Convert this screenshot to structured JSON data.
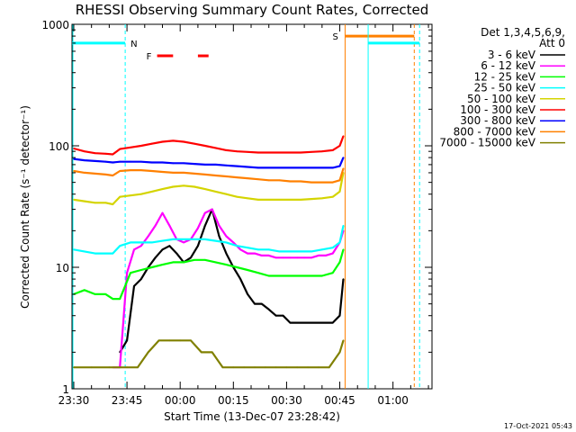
{
  "chart_data": {
    "type": "line",
    "title": "RHESSI Observing Summary Count Rates, Corrected",
    "xlabel": "Start Time (13-Dec-07 23:28:42)",
    "ylabel": "Corrected Count Rate (s⁻¹ detector⁻¹)",
    "ylog": true,
    "ylim": [
      1,
      1000
    ],
    "xlim_minutes": [
      -0.5,
      101
    ],
    "x_tick_minutes": [
      0,
      15,
      30,
      45,
      60,
      75,
      90
    ],
    "x_tick_labels": [
      "23:30",
      "23:45",
      "00:00",
      "00:15",
      "00:30",
      "00:45",
      "01:00"
    ],
    "y_ticks": [
      1,
      10,
      100,
      1000
    ],
    "y_tick_labels": [
      "1",
      "10",
      "100",
      "1000"
    ],
    "legend_title": "Det 1,3,4,5,6,9,",
    "legend_subtitle": "Att 0",
    "legend_position": "top-right, outside plot",
    "footer_date": "17-Oct-2021 05:43",
    "series": [
      {
        "name": "3 - 6 keV",
        "color": "#000000",
        "x": [
          13,
          15,
          17,
          19,
          21,
          23,
          25,
          27,
          29,
          31,
          33,
          35,
          37,
          39,
          41,
          43,
          45,
          47,
          49,
          51,
          53,
          55,
          57,
          59,
          61,
          63,
          65,
          67,
          69,
          71,
          73,
          75,
          76
        ],
        "y": [
          2,
          2.5,
          7,
          8,
          10,
          12,
          14,
          15,
          13,
          11,
          12,
          15,
          22,
          30,
          18,
          13,
          10,
          8,
          6,
          5,
          5,
          4.5,
          4,
          4,
          3.5,
          3.5,
          3.5,
          3.5,
          3.5,
          3.5,
          3.5,
          4,
          8
        ]
      },
      {
        "name": "6 - 12 keV",
        "color": "#ff00ff",
        "x": [
          11,
          13,
          15,
          17,
          19,
          21,
          23,
          25,
          27,
          29,
          31,
          33,
          35,
          37,
          39,
          41,
          43,
          45,
          47,
          49,
          51,
          53,
          55,
          57,
          59,
          61,
          63,
          65,
          67,
          69,
          71,
          73,
          75,
          76
        ],
        "y": [
          1.5,
          1.5,
          9,
          14,
          15,
          18,
          22,
          28,
          22,
          17,
          16,
          17,
          21,
          28,
          30,
          22,
          18,
          16,
          14,
          13,
          13,
          12.5,
          12.5,
          12,
          12,
          12,
          12,
          12,
          12,
          12.5,
          12.5,
          13,
          16,
          20
        ]
      },
      {
        "name": "12 - 25 keV",
        "color": "#00ff00",
        "x": [
          0,
          3,
          6,
          9,
          11,
          13,
          16,
          19,
          22,
          25,
          28,
          31,
          34,
          37,
          40,
          43,
          46,
          49,
          52,
          55,
          58,
          61,
          64,
          67,
          70,
          73,
          75,
          76
        ],
        "y": [
          6,
          6.5,
          6,
          6,
          5.5,
          5.5,
          9,
          9.5,
          10,
          10.5,
          11,
          11,
          11.5,
          11.5,
          11,
          10.5,
          10,
          9.5,
          9,
          8.5,
          8.5,
          8.5,
          8.5,
          8.5,
          8.5,
          9,
          11,
          14
        ]
      },
      {
        "name": "25 - 50 keV",
        "color": "#00ffff",
        "x": [
          0,
          3,
          6,
          9,
          11,
          13,
          16,
          19,
          22,
          25,
          28,
          31,
          34,
          37,
          40,
          43,
          46,
          49,
          52,
          55,
          58,
          61,
          64,
          67,
          70,
          73,
          75,
          76
        ],
        "y": [
          14,
          13.5,
          13,
          13,
          13,
          15,
          16,
          16,
          16,
          16.5,
          17,
          17,
          17,
          17,
          16.5,
          16,
          15,
          14.5,
          14,
          14,
          13.5,
          13.5,
          13.5,
          13.5,
          14,
          14.5,
          16,
          22
        ]
      },
      {
        "name": "50 - 100 keV",
        "color": "#d4d400",
        "x": [
          0,
          3,
          6,
          9,
          11,
          13,
          16,
          19,
          22,
          25,
          28,
          31,
          34,
          37,
          40,
          43,
          46,
          49,
          52,
          55,
          58,
          61,
          64,
          67,
          70,
          73,
          75,
          76
        ],
        "y": [
          36,
          35,
          34,
          34,
          33,
          38,
          39,
          40,
          42,
          44,
          46,
          47,
          46,
          44,
          42,
          40,
          38,
          37,
          36,
          36,
          36,
          36,
          36,
          36.5,
          37,
          38,
          42,
          60
        ]
      },
      {
        "name": "100 - 300 keV",
        "color": "#ff0000",
        "x": [
          0,
          3,
          6,
          9,
          11,
          13,
          16,
          19,
          22,
          25,
          28,
          31,
          34,
          37,
          40,
          43,
          46,
          49,
          52,
          55,
          58,
          61,
          64,
          67,
          70,
          73,
          75,
          76
        ],
        "y": [
          95,
          90,
          87,
          86,
          85,
          94,
          97,
          100,
          104,
          108,
          110,
          108,
          104,
          100,
          96,
          92,
          90,
          89,
          88,
          88,
          88,
          88,
          88,
          89,
          90,
          92,
          100,
          120
        ]
      },
      {
        "name": "300 - 800 keV",
        "color": "#0000ff",
        "x": [
          0,
          3,
          6,
          9,
          11,
          13,
          16,
          19,
          22,
          25,
          28,
          31,
          34,
          37,
          40,
          43,
          46,
          49,
          52,
          55,
          58,
          61,
          64,
          67,
          70,
          73,
          75,
          76
        ],
        "y": [
          78,
          76,
          75,
          74,
          73,
          74,
          74,
          74,
          73,
          73,
          72,
          72,
          71,
          70,
          70,
          69,
          68,
          67,
          66,
          66,
          66,
          66,
          66,
          66,
          66,
          66,
          68,
          80
        ]
      },
      {
        "name": "800 - 7000 keV",
        "color": "#ff8000",
        "x": [
          0,
          3,
          6,
          9,
          11,
          13,
          16,
          19,
          22,
          25,
          28,
          31,
          34,
          37,
          40,
          43,
          46,
          49,
          52,
          55,
          58,
          61,
          64,
          67,
          70,
          73,
          75,
          76
        ],
        "y": [
          62,
          60,
          59,
          58,
          57,
          62,
          63,
          63,
          62,
          61,
          60,
          60,
          59,
          58,
          57,
          56,
          55,
          54,
          53,
          52,
          52,
          51,
          51,
          50,
          50,
          50,
          52,
          65
        ]
      },
      {
        "name": "7000 - 15000 keV",
        "color": "#808000",
        "x": [
          0,
          5,
          10,
          15,
          18,
          21,
          24,
          27,
          30,
          33,
          36,
          39,
          42,
          45,
          48,
          51,
          54,
          57,
          60,
          63,
          66,
          69,
          72,
          75,
          76
        ],
        "y": [
          1.5,
          1.5,
          1.5,
          1.5,
          1.5,
          2,
          2.5,
          2.5,
          2.5,
          2.5,
          2,
          2,
          1.5,
          1.5,
          1.5,
          1.5,
          1.5,
          1.5,
          1.5,
          1.5,
          1.5,
          1.5,
          1.5,
          2,
          2.5
        ]
      }
    ],
    "flag_bars": [
      {
        "label": "N",
        "color": "#00ffff",
        "y": 700,
        "segments": [
          [
            -0.5,
            14.5
          ]
        ],
        "dashed_x": [
          14.5
        ],
        "solid_x": []
      },
      {
        "label": "S",
        "color": "#ff8000",
        "y": 800,
        "segments": [
          [
            76.5,
            96
          ]
        ],
        "dashed_x": [
          96
        ],
        "solid_x": [
          76.5
        ]
      },
      {
        "label": "",
        "color": "#00ffff",
        "y": 700,
        "segments": [
          [
            83,
            97.5
          ]
        ],
        "dashed_x": [
          97.5
        ],
        "solid_x": [
          83
        ]
      },
      {
        "label": "F",
        "color": "#ff0000",
        "y": 550,
        "segments": [
          [
            23.5,
            28
          ],
          [
            35,
            38
          ]
        ],
        "dashed_x": [],
        "solid_x": []
      }
    ]
  }
}
